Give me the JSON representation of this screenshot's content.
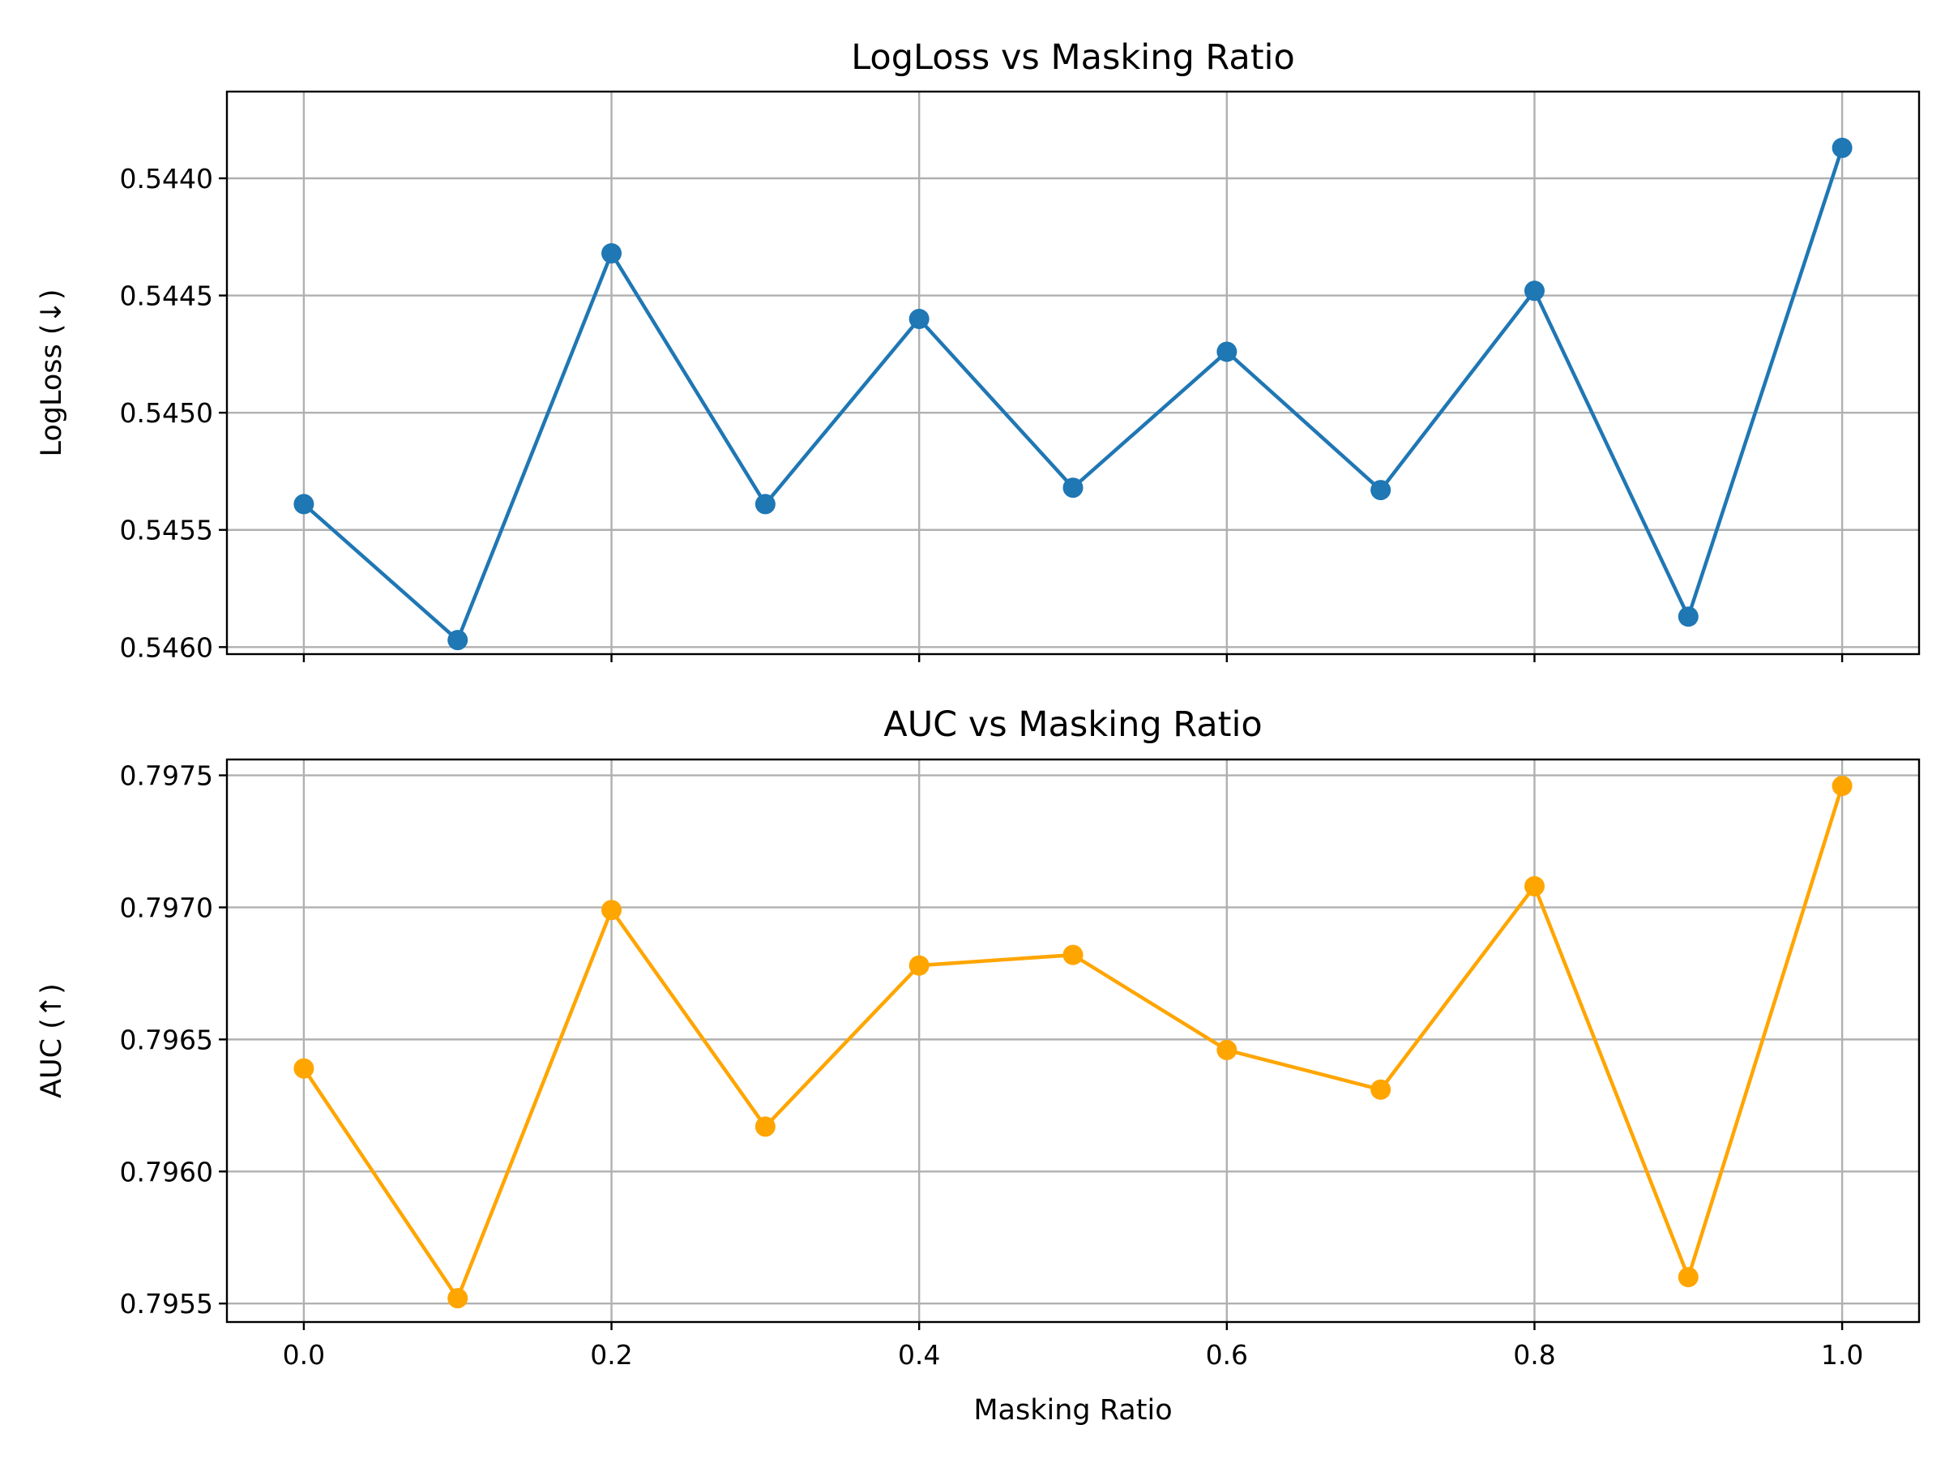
{
  "chart_data": [
    {
      "type": "line",
      "title": "LogLoss vs Masking Ratio",
      "xlabel": "",
      "ylabel": "LogLoss (↓)",
      "y_inverted": true,
      "grid": true,
      "x_tick_labels_shown": false,
      "color": "#1f77b4",
      "x": [
        0.0,
        0.1,
        0.2,
        0.3,
        0.4,
        0.5,
        0.6,
        0.7,
        0.8,
        0.9,
        1.0
      ],
      "values": [
        0.54539,
        0.54597,
        0.54432,
        0.54539,
        0.5446,
        0.54532,
        0.54474,
        0.54533,
        0.54448,
        0.54587,
        0.54387
      ],
      "xticks": [
        0.0,
        0.2,
        0.4,
        0.6,
        0.8,
        1.0
      ],
      "yticks": [
        0.544,
        0.5445,
        0.545,
        0.5455,
        0.546
      ],
      "ytick_labels": [
        "0.5440",
        "0.5445",
        "0.5450",
        "0.5455",
        "0.5460"
      ],
      "ylim": [
        0.54603,
        0.54363
      ],
      "xlim": [
        -0.05,
        1.05
      ]
    },
    {
      "type": "line",
      "title": "AUC vs Masking Ratio",
      "xlabel": "Masking Ratio",
      "ylabel": "AUC (↑)",
      "grid": true,
      "x_tick_labels_shown": true,
      "color": "#ffa500",
      "x": [
        0.0,
        0.1,
        0.2,
        0.3,
        0.4,
        0.5,
        0.6,
        0.7,
        0.8,
        0.9,
        1.0
      ],
      "values": [
        0.79639,
        0.79552,
        0.79699,
        0.79617,
        0.79678,
        0.79682,
        0.79646,
        0.79631,
        0.79708,
        0.7956,
        0.79746
      ],
      "xticks": [
        0.0,
        0.2,
        0.4,
        0.6,
        0.8,
        1.0
      ],
      "xtick_labels": [
        "0.0",
        "0.2",
        "0.4",
        "0.6",
        "0.8",
        "1.0"
      ],
      "yticks": [
        0.7955,
        0.796,
        0.7965,
        0.797,
        0.7975
      ],
      "ytick_labels": [
        "0.7955",
        "0.7960",
        "0.7965",
        "0.7970",
        "0.7975"
      ],
      "ylim": [
        0.79543,
        0.79756
      ],
      "xlim": [
        -0.05,
        1.05
      ]
    }
  ]
}
